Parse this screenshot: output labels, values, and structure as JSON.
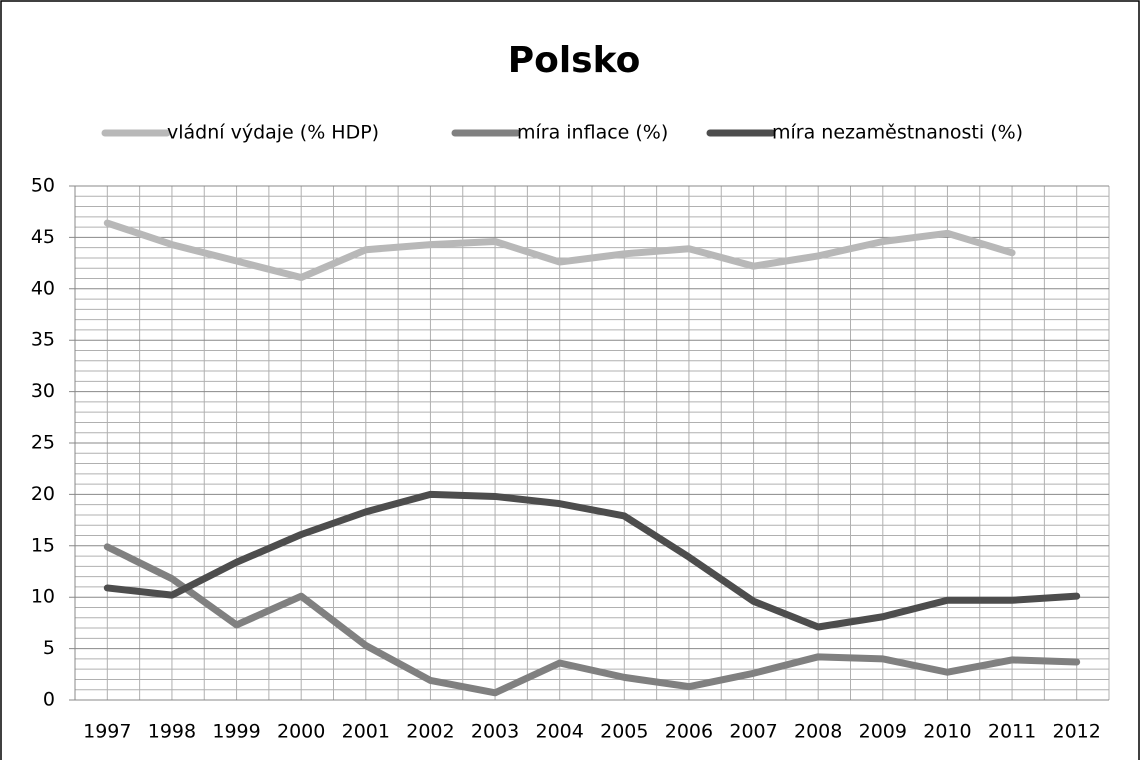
{
  "chart_data": {
    "type": "line",
    "title": "Polsko",
    "categories": [
      "1997",
      "1998",
      "1999",
      "2000",
      "2001",
      "2002",
      "2003",
      "2004",
      "2005",
      "2006",
      "2007",
      "2008",
      "2009",
      "2010",
      "2011",
      "2012"
    ],
    "series": [
      {
        "name": "vládní výdaje (% HDP)",
        "color": "#b8b8b8",
        "values": [
          46.4,
          44.3,
          42.7,
          41.1,
          43.8,
          44.3,
          44.6,
          42.6,
          43.4,
          43.9,
          42.2,
          43.2,
          44.6,
          45.4,
          43.5,
          null
        ]
      },
      {
        "name": "míra inflace (%)",
        "color": "#808080",
        "values": [
          14.9,
          11.8,
          7.3,
          10.1,
          5.3,
          1.9,
          0.7,
          3.6,
          2.2,
          1.3,
          2.6,
          4.2,
          4.0,
          2.7,
          3.9,
          3.7
        ]
      },
      {
        "name": "míra nezaměstnanosti (%)",
        "color": "#4d4d4d",
        "values": [
          10.9,
          10.2,
          13.4,
          16.1,
          18.3,
          20.0,
          19.8,
          19.1,
          17.9,
          13.9,
          9.6,
          7.1,
          8.1,
          9.7,
          9.7,
          10.1
        ]
      }
    ],
    "ylim": [
      0,
      50
    ],
    "yticks": [
      0,
      5,
      10,
      15,
      20,
      25,
      30,
      35,
      40,
      45,
      50
    ],
    "grid": "minor",
    "legend": "top"
  }
}
